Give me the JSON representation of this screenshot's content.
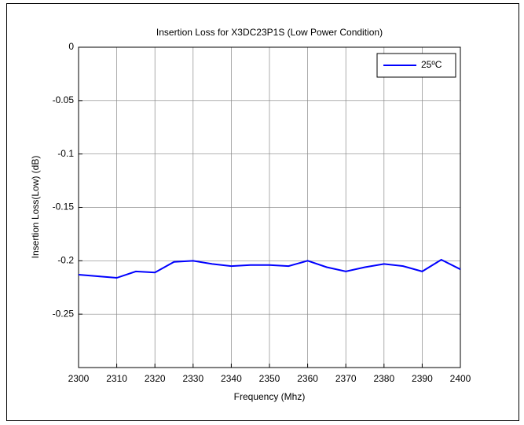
{
  "chart_data": {
    "type": "line",
    "title": "Insertion Loss for X3DC23P1S (Low Power Condition)",
    "x_label": "Frequency (Mhz)",
    "y_label": "Insertion Loss(Low) (dB)",
    "x": [
      2300,
      2305,
      2310,
      2315,
      2320,
      2325,
      2330,
      2335,
      2340,
      2345,
      2350,
      2355,
      2360,
      2365,
      2370,
      2375,
      2380,
      2385,
      2390,
      2395,
      2400
    ],
    "series": [
      {
        "name": "25ºC",
        "color": "#0000ff",
        "values": [
          -0.213,
          -0.2145,
          -0.216,
          -0.21,
          -0.211,
          -0.201,
          -0.2,
          -0.203,
          -0.205,
          -0.204,
          -0.204,
          -0.205,
          -0.2,
          -0.206,
          -0.21,
          -0.206,
          -0.203,
          -0.205,
          -0.21,
          -0.199,
          -0.208
        ]
      }
    ],
    "xlim": [
      2300,
      2400
    ],
    "xticks": [
      2300,
      2310,
      2320,
      2330,
      2340,
      2350,
      2360,
      2370,
      2380,
      2390,
      2400
    ],
    "ylim": [
      -0.3,
      0
    ],
    "yticks": [
      -0.25,
      -0.2,
      -0.15,
      -0.1,
      -0.05,
      0
    ],
    "grid": true,
    "legend": "top-right"
  }
}
